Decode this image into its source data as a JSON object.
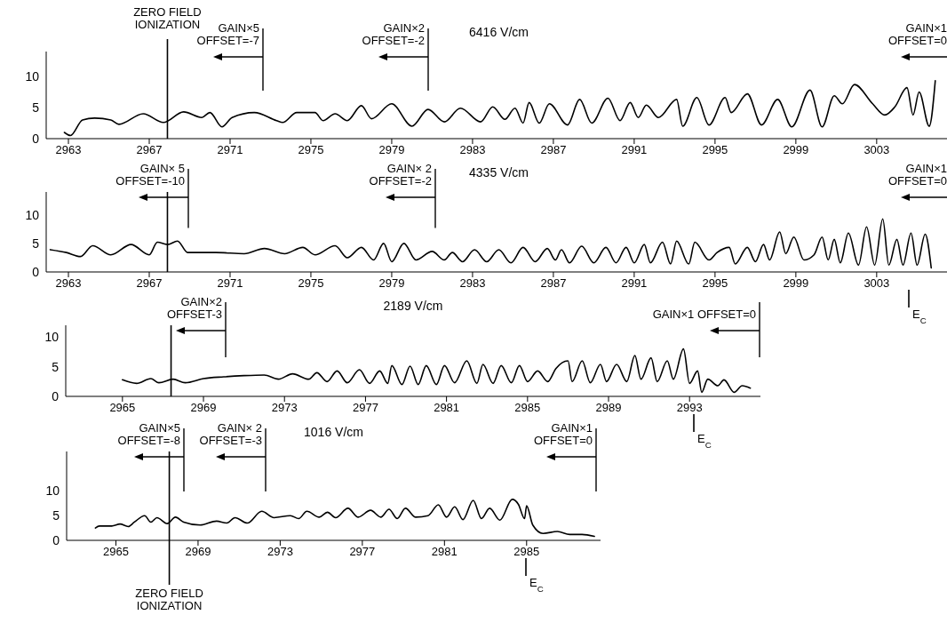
{
  "chart_data": [
    {
      "type": "line",
      "title": "6416 V/cm",
      "color": "#000000",
      "xlim": [
        2961.9,
        3006.7
      ],
      "ylim": [
        0,
        14
      ],
      "yticks": [
        0,
        5,
        10
      ],
      "xticks": [
        2963,
        2967,
        2971,
        2975,
        2979,
        2983,
        2987,
        2991,
        2995,
        2999,
        3003
      ],
      "x": [
        2962.8,
        2963.1,
        2963.7,
        2964.3,
        2965.1,
        2965.5,
        2966.7,
        2967.7,
        2968.7,
        2969.6,
        2970.0,
        2970.6,
        2971.1,
        2972.2,
        2973.3,
        2973.6,
        2974.3,
        2975.2,
        2975.6,
        2976.2,
        2976.8,
        2977.5,
        2978.0,
        2979.0,
        2980.0,
        2980.8,
        2981.6,
        2982.4,
        2983.4,
        2984.0,
        2984.6,
        2985.1,
        2985.5,
        2985.8,
        2986.3,
        2986.8,
        2987.7,
        2988.3,
        2988.9,
        2989.7,
        2990.3,
        2990.8,
        2991.2,
        2991.6,
        2992.2,
        2993.1,
        2993.4,
        2994.1,
        2994.7,
        2995.5,
        2995.8,
        2996.6,
        2997.3,
        2998.1,
        2998.8,
        2999.7,
        3000.3,
        3000.9,
        3001.3,
        3001.9,
        3002.8,
        3003.4,
        3003.9,
        3004.5,
        3004.8,
        3005.1,
        3005.6,
        3005.9
      ],
      "values": [
        1,
        0.5,
        3,
        3.3,
        3,
        2.3,
        4,
        2.6,
        4.3,
        3.4,
        4.2,
        1.9,
        3.4,
        4.2,
        2.9,
        2.6,
        4.2,
        4.2,
        2.9,
        4,
        2.9,
        5.3,
        3.2,
        5.6,
        2,
        4.7,
        2.7,
        4.9,
        2.7,
        5.1,
        3.1,
        4.9,
        2.5,
        5.8,
        2.5,
        5.6,
        2.2,
        6.3,
        2.5,
        6.5,
        2.9,
        5.8,
        3.4,
        5.4,
        3.4,
        6.3,
        2,
        6.6,
        2.2,
        6.6,
        4.2,
        7.2,
        2.2,
        6.3,
        1.9,
        7.8,
        1.9,
        6.9,
        5.6,
        8.7,
        5.6,
        3.8,
        5.1,
        8.2,
        3.8,
        7.5,
        2,
        9.3
      ],
      "ref_lines": [
        {
          "axis": "x",
          "value": 2967.9,
          "label": "ZERO FIELD\nIONIZATION"
        }
      ],
      "annotations": [
        "GAIN×5\nOFFSET=-7",
        "GAIN×2\nOFFSET=-2",
        "GAIN×1\nOFFSET=0"
      ]
    },
    {
      "type": "line",
      "title": "4335 V/cm",
      "color": "#000000",
      "xlim": [
        2961.9,
        3006.7
      ],
      "ylim": [
        0,
        14
      ],
      "yticks": [
        0,
        5,
        10
      ],
      "xticks": [
        2963,
        2967,
        2971,
        2975,
        2979,
        2983,
        2987,
        2991,
        2995,
        2999,
        3003
      ],
      "x": [
        2962.1,
        2962.9,
        2963.6,
        2964.2,
        2965.1,
        2966.1,
        2967.0,
        2967.4,
        2967.9,
        2968.4,
        2968.9,
        2970.3,
        2971.7,
        2972.7,
        2973.7,
        2974.6,
        2975.2,
        2976.2,
        2976.8,
        2977.5,
        2978.1,
        2978.6,
        2979.0,
        2979.6,
        2980.2,
        2981.0,
        2981.6,
        2982.0,
        2982.5,
        2983.1,
        2983.7,
        2984.3,
        2984.9,
        2985.5,
        2986.1,
        2986.7,
        2987.1,
        2987.4,
        2987.8,
        2988.4,
        2989.0,
        2989.6,
        2990.1,
        2990.6,
        2991.0,
        2991.5,
        2991.8,
        2992.4,
        2992.8,
        2993.1,
        2993.7,
        2994.0,
        2994.7,
        2995.1,
        2995.7,
        2996.0,
        2996.6,
        2997.0,
        2997.4,
        2997.7,
        2998.2,
        2998.5,
        2998.9,
        2999.4,
        2999.9,
        3000.3,
        3000.6,
        3000.9,
        3001.2,
        3001.6,
        3002.1,
        3002.5,
        3002.9,
        3003.3,
        3003.6,
        3004.0,
        3004.3,
        3004.7,
        3005.0,
        3005.4,
        3005.7
      ],
      "values": [
        3.9,
        3.4,
        2.7,
        4.6,
        3.0,
        4.8,
        3.0,
        5.2,
        4.8,
        5.4,
        3.4,
        3.4,
        3.2,
        4.1,
        3.2,
        4.3,
        3.0,
        4.6,
        2.5,
        4.3,
        2.1,
        5.0,
        1.8,
        5.0,
        2.1,
        3.6,
        2.1,
        3.4,
        1.8,
        3.9,
        1.8,
        3.9,
        1.6,
        4.3,
        1.8,
        4.1,
        2.1,
        3.9,
        1.6,
        4.5,
        1.6,
        4.3,
        1.6,
        4.3,
        1.6,
        4.8,
        1.6,
        5.2,
        1.4,
        5.4,
        1.4,
        5.2,
        2.1,
        3.4,
        4.3,
        1.4,
        4.3,
        1.8,
        4.8,
        2.1,
        7.0,
        3.2,
        6.1,
        2.1,
        3.0,
        6.1,
        2.1,
        5.7,
        1.6,
        6.8,
        1.2,
        7.9,
        1.2,
        9.3,
        1.2,
        5.7,
        1.2,
        6.8,
        1.2,
        6.6,
        0.7
      ],
      "ref_lines": [
        {
          "axis": "x",
          "value": 2967.9
        }
      ],
      "annotations": [
        "GAIN× 5\nOFFSET=-10",
        "GAIN× 2\nOFFSET=-2",
        "GAIN×1\nOFFSET=0",
        "E$_{C}$"
      ]
    },
    {
      "type": "line",
      "title": "2189 V/cm",
      "color": "#000000",
      "xlim": [
        2962.2,
        2996.5
      ],
      "ylim": [
        0,
        12
      ],
      "yticks": [
        0,
        5,
        10
      ],
      "xticks": [
        2965,
        2969,
        2973,
        2977,
        2981,
        2985,
        2989,
        2993
      ],
      "x": [
        2965.0,
        2965.7,
        2966.4,
        2966.8,
        2967.5,
        2968.1,
        2969.0,
        2970.0,
        2971.0,
        2972.0,
        2972.7,
        2973.4,
        2974.2,
        2974.6,
        2975.1,
        2975.6,
        2976.1,
        2976.7,
        2977.2,
        2977.7,
        2978.1,
        2978.3,
        2978.8,
        2979.2,
        2979.6,
        2980.0,
        2980.5,
        2980.9,
        2981.4,
        2982.0,
        2982.5,
        2982.8,
        2983.3,
        2983.7,
        2984.2,
        2984.6,
        2985.0,
        2985.5,
        2986.0,
        2986.4,
        2987.0,
        2987.2,
        2987.7,
        2988.1,
        2988.6,
        2988.9,
        2989.4,
        2989.9,
        2990.3,
        2990.6,
        2991.1,
        2991.4,
        2991.9,
        2992.2,
        2992.7,
        2993.0,
        2993.4,
        2993.6,
        2993.9,
        2994.4,
        2994.7,
        2995.2,
        2995.6,
        2996.0
      ],
      "values": [
        2.8,
        2.2,
        3.0,
        2.3,
        2.9,
        2.3,
        3.0,
        3.3,
        3.5,
        3.6,
        2.9,
        3.8,
        2.9,
        4.0,
        2.5,
        4.3,
        2.3,
        4.5,
        2.2,
        4.3,
        2.2,
        5.2,
        2.0,
        5.1,
        2.0,
        5.2,
        2.0,
        5.2,
        2.3,
        6.0,
        2.2,
        5.4,
        2.2,
        5.2,
        2.3,
        5.2,
        2.5,
        4.3,
        2.5,
        4.7,
        6.0,
        2.5,
        6.0,
        2.3,
        5.4,
        2.5,
        5.4,
        2.5,
        6.9,
        2.9,
        6.5,
        2.5,
        6.0,
        2.9,
        8.0,
        2.2,
        4.3,
        0.7,
        2.9,
        1.8,
        2.8,
        0.7,
        1.8,
        1.4
      ],
      "ref_lines": [
        {
          "axis": "x",
          "value": 2967.4
        }
      ],
      "annotations": [
        "GAIN×2\nOFFSET-3",
        "GAIN×1 OFFSET=0",
        "E$_{C}$"
      ]
    },
    {
      "type": "line",
      "title": "1016 V/cm",
      "color": "#000000",
      "xlim": [
        2962.6,
        2988.6
      ],
      "ylim": [
        0,
        18
      ],
      "yticks": [
        0,
        5,
        10
      ],
      "xticks": [
        2965,
        2969,
        2973,
        2977,
        2981,
        2985
      ],
      "x": [
        2964.0,
        2964.2,
        2964.8,
        2965.2,
        2965.6,
        2965.9,
        2966.4,
        2966.7,
        2967.0,
        2967.5,
        2967.9,
        2968.3,
        2969.1,
        2969.9,
        2970.4,
        2970.8,
        2971.4,
        2972.1,
        2972.7,
        2973.5,
        2973.9,
        2974.3,
        2974.9,
        2975.3,
        2975.7,
        2976.3,
        2976.8,
        2977.4,
        2977.9,
        2978.3,
        2978.7,
        2979.1,
        2979.6,
        2980.2,
        2980.7,
        2981.1,
        2981.5,
        2981.9,
        2982.4,
        2982.8,
        2983.2,
        2983.7,
        2984.3,
        2984.6,
        2984.9,
        2985.0,
        2985.3,
        2985.8,
        2986.5,
        2987.1,
        2987.7,
        2988.3
      ],
      "values": [
        2.5,
        2.9,
        2.9,
        3.3,
        2.8,
        3.7,
        5.0,
        3.7,
        4.6,
        3.4,
        4.7,
        3.7,
        3.1,
        3.9,
        3.5,
        4.6,
        3.5,
        5.9,
        4.6,
        5.0,
        4.4,
        5.9,
        4.7,
        5.7,
        4.6,
        6.5,
        4.7,
        6.1,
        4.7,
        6.3,
        4.4,
        6.5,
        4.7,
        5.0,
        7.2,
        4.7,
        6.8,
        4.2,
        8.1,
        4.4,
        6.5,
        4.1,
        8.3,
        7.3,
        4.4,
        7.0,
        3.1,
        1.4,
        1.8,
        1.2,
        1.2,
        0.8
      ],
      "ref_lines": [
        {
          "axis": "x",
          "value": 2967.6,
          "label": "ZERO FIELD\nIONIZATION"
        }
      ],
      "annotations": [
        "GAIN×5\nOFFSET=-8",
        "GAIN× 2\nOFFSET=-3",
        "GAIN×1\nOFFSET=0",
        "E$_{C}$"
      ]
    }
  ]
}
